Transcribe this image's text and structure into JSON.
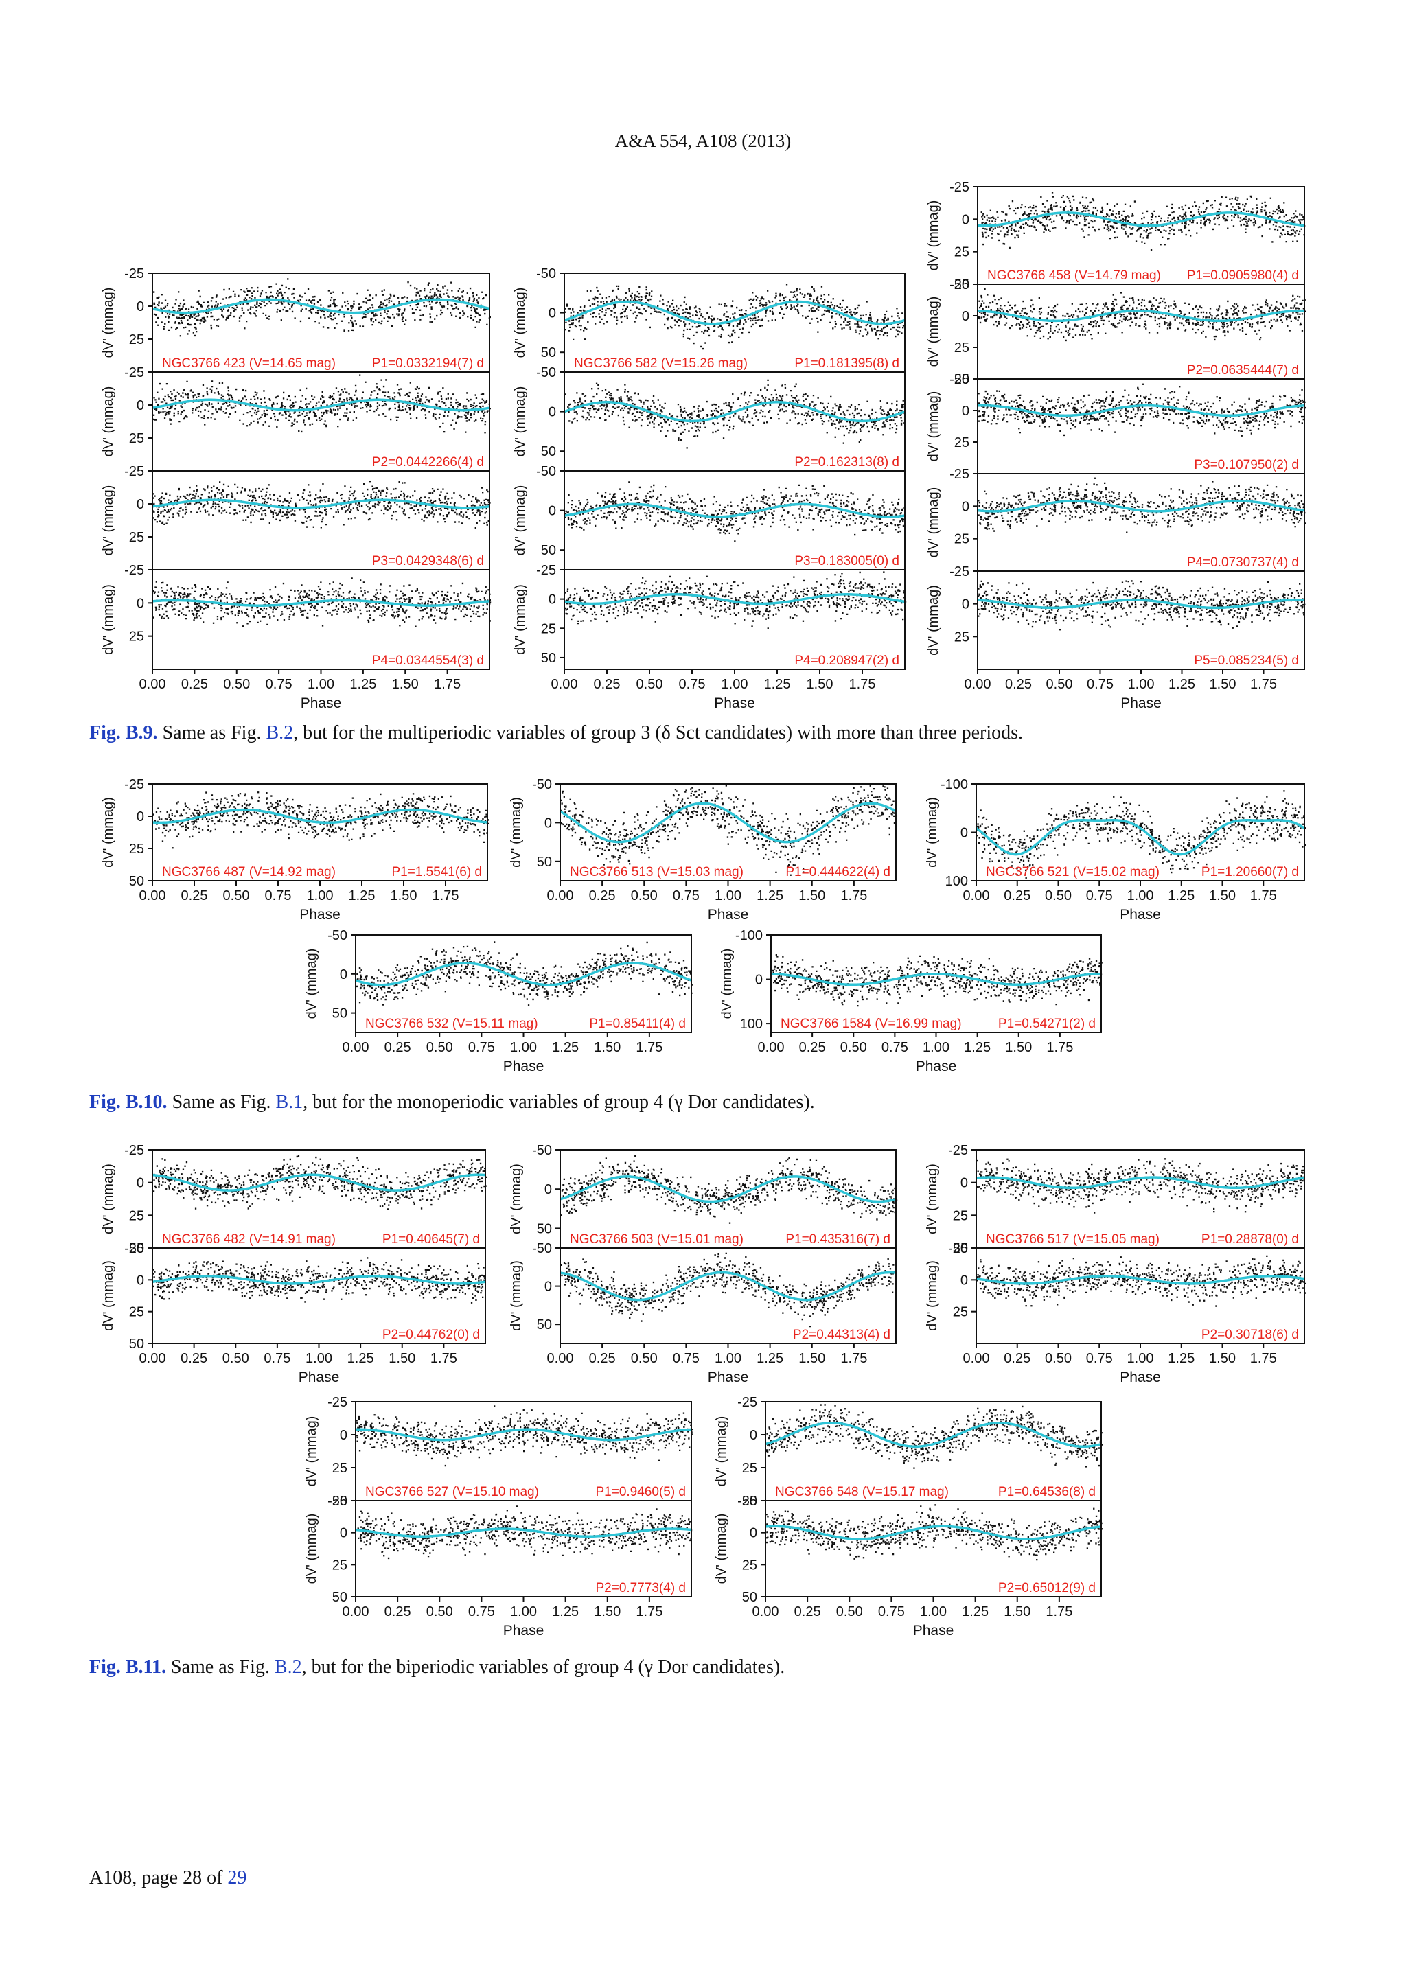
{
  "page_header": "A&A 554, A108 (2013)",
  "footer": {
    "prefix": "A108, page 28 of ",
    "total": "29"
  },
  "captions": [
    {
      "label": "Fig. B.9.",
      "text1": " Same as Fig. ",
      "ref": "B.2",
      "text2": ", but for the multiperiodic variables of group 3 (δ Sct candidates) with more than three periods."
    },
    {
      "label": "Fig. B.10.",
      "text1": " Same as Fig. ",
      "ref": "B.1",
      "text2": ", but for the monoperiodic variables of group 4 (γ Dor candidates)."
    },
    {
      "label": "Fig. B.11.",
      "text1": " Same as Fig. ",
      "ref": "B.2",
      "text2": ", but for the biperiodic variables of group 4 (γ Dor candidates)."
    }
  ],
  "axis": {
    "ylabel": "dV' (mmag)",
    "xlabel": "Phase",
    "xticks": [
      "0.00",
      "0.25",
      "0.50",
      "0.75",
      "1.00",
      "1.25",
      "1.50",
      "1.75"
    ],
    "xlim": [
      0,
      2
    ]
  },
  "colors": {
    "points": "#111111",
    "fit": "#2ec4d6",
    "label": "#e8231c",
    "caption_link": "#1f3fbf"
  },
  "chart_data": [
    {
      "type": "scatter",
      "star": "NGC3766 423 (V=14.65 mag)",
      "panels": [
        {
          "period": "P1=0.0332194(7) d",
          "ylim": [
            -25,
            50
          ],
          "yticks": [
            "-25",
            "0",
            "25"
          ],
          "amp": 5
        },
        {
          "period": "P2=0.0442266(4) d",
          "ylim": [
            -25,
            50
          ],
          "yticks": [
            "-25",
            "0",
            "25"
          ],
          "amp": 4
        },
        {
          "period": "P3=0.0429348(6) d",
          "ylim": [
            -25,
            50
          ],
          "yticks": [
            "-25",
            "0",
            "25"
          ],
          "amp": 3
        },
        {
          "period": "P4=0.0344554(3) d",
          "ylim": [
            -25,
            50
          ],
          "yticks": [
            "-25",
            "0",
            "25"
          ],
          "amp": 2
        }
      ]
    },
    {
      "type": "scatter",
      "star": "NGC3766 582 (V=15.26 mag)",
      "panels": [
        {
          "period": "P1=0.181395(8) d",
          "ylim": [
            -50,
            75
          ],
          "yticks": [
            "-50",
            "0",
            "50"
          ],
          "amp": 14
        },
        {
          "period": "P2=0.162313(8) d",
          "ylim": [
            -50,
            75
          ],
          "yticks": [
            "-50",
            "0",
            "50"
          ],
          "amp": 12
        },
        {
          "period": "P3=0.183005(0) d",
          "ylim": [
            -50,
            75
          ],
          "yticks": [
            "-50",
            "0",
            "50"
          ],
          "amp": 8
        },
        {
          "period": "P4=0.208947(2) d",
          "ylim": [
            -25,
            60
          ],
          "yticks": [
            "-25",
            "0",
            "25",
            "50"
          ],
          "amp": 4
        }
      ]
    },
    {
      "type": "scatter",
      "star": "NGC3766 458 (V=14.79 mag)",
      "panels": [
        {
          "period": "P1=0.0905980(4) d",
          "ylim": [
            -25,
            50
          ],
          "yticks": [
            "-25",
            "0",
            "25",
            "50"
          ],
          "amp": 5
        },
        {
          "period": "P2=0.0635444(7) d",
          "ylim": [
            -25,
            50
          ],
          "yticks": [
            "-25",
            "0",
            "25",
            "50"
          ],
          "amp": 4
        },
        {
          "period": "P3=0.107950(2) d",
          "ylim": [
            -25,
            50
          ],
          "yticks": [
            "-25",
            "0",
            "25"
          ],
          "amp": 4
        },
        {
          "period": "P4=0.0730737(4) d",
          "ylim": [
            -25,
            50
          ],
          "yticks": [
            "-25",
            "0",
            "25"
          ],
          "amp": 4
        },
        {
          "period": "P5=0.085234(5) d",
          "ylim": [
            -25,
            50
          ],
          "yticks": [
            "-25",
            "0",
            "25"
          ],
          "amp": 3
        }
      ]
    },
    {
      "type": "scatter",
      "star": "NGC3766 487 (V=14.92 mag)",
      "panels": [
        {
          "period": "P1=1.5541(6) d",
          "ylim": [
            -25,
            50
          ],
          "yticks": [
            "-25",
            "0",
            "25",
            "50"
          ],
          "amp": 5
        }
      ]
    },
    {
      "type": "scatter",
      "star": "NGC3766 513 (V=15.03 mag)",
      "panels": [
        {
          "period": "P1=0.444622(4) d",
          "ylim": [
            -50,
            75
          ],
          "yticks": [
            "-50",
            "0",
            "50"
          ],
          "amp": 25
        }
      ]
    },
    {
      "type": "scatter",
      "star": "NGC3766 521 (V=15.02 mag)",
      "panels": [
        {
          "period": "P1=1.20660(7) d",
          "ylim": [
            -100,
            100
          ],
          "yticks": [
            "-100",
            "0",
            "100"
          ],
          "amp": 35
        }
      ]
    },
    {
      "type": "scatter",
      "star": "NGC3766 532 (V=15.11 mag)",
      "panels": [
        {
          "period": "P1=0.85411(4) d",
          "ylim": [
            -50,
            75
          ],
          "yticks": [
            "-50",
            "0",
            "50"
          ],
          "amp": 14
        }
      ]
    },
    {
      "type": "scatter",
      "star": "NGC3766 1584 (V=16.99 mag)",
      "panels": [
        {
          "period": "P1=0.54271(2) d",
          "ylim": [
            -100,
            120
          ],
          "yticks": [
            "-100",
            "0",
            "100"
          ],
          "amp": 12
        }
      ]
    },
    {
      "type": "scatter",
      "star": "NGC3766 482 (V=14.91 mag)",
      "panels": [
        {
          "period": "P1=0.40645(7) d",
          "ylim": [
            -25,
            50
          ],
          "yticks": [
            "-25",
            "0",
            "25",
            "50"
          ],
          "amp": 6
        },
        {
          "period": "P2=0.44762(0) d",
          "ylim": [
            -25,
            50
          ],
          "yticks": [
            "-25",
            "0",
            "25",
            "50"
          ],
          "amp": 3
        }
      ]
    },
    {
      "type": "scatter",
      "star": "NGC3766 503 (V=15.01 mag)",
      "panels": [
        {
          "period": "P1=0.435316(7) d",
          "ylim": [
            -50,
            75
          ],
          "yticks": [
            "-50",
            "0",
            "50"
          ],
          "amp": 16
        },
        {
          "period": "P2=0.44313(4) d",
          "ylim": [
            -50,
            75
          ],
          "yticks": [
            "-50",
            "0",
            "50"
          ],
          "amp": 18
        }
      ]
    },
    {
      "type": "scatter",
      "star": "NGC3766 517 (V=15.05 mag)",
      "panels": [
        {
          "period": "P1=0.28878(0) d",
          "ylim": [
            -25,
            50
          ],
          "yticks": [
            "-25",
            "0",
            "25",
            "50"
          ],
          "amp": 4
        },
        {
          "period": "P2=0.30718(6) d",
          "ylim": [
            -25,
            50
          ],
          "yticks": [
            "-25",
            "0",
            "25"
          ],
          "amp": 3
        }
      ]
    },
    {
      "type": "scatter",
      "star": "NGC3766 527 (V=15.10 mag)",
      "panels": [
        {
          "period": "P1=0.9460(5) d",
          "ylim": [
            -25,
            50
          ],
          "yticks": [
            "-25",
            "0",
            "25",
            "50"
          ],
          "amp": 4
        },
        {
          "period": "P2=0.7773(4) d",
          "ylim": [
            -25,
            50
          ],
          "yticks": [
            "-25",
            "0",
            "25",
            "50"
          ],
          "amp": 3
        }
      ]
    },
    {
      "type": "scatter",
      "star": "NGC3766 548 (V=15.17 mag)",
      "panels": [
        {
          "period": "P1=0.64536(8) d",
          "ylim": [
            -25,
            50
          ],
          "yticks": [
            "-25",
            "0",
            "25",
            "50"
          ],
          "amp": 9
        },
        {
          "period": "P2=0.65012(9) d",
          "ylim": [
            -25,
            50
          ],
          "yticks": [
            "-25",
            "0",
            "25",
            "50"
          ],
          "amp": 5
        }
      ]
    }
  ]
}
